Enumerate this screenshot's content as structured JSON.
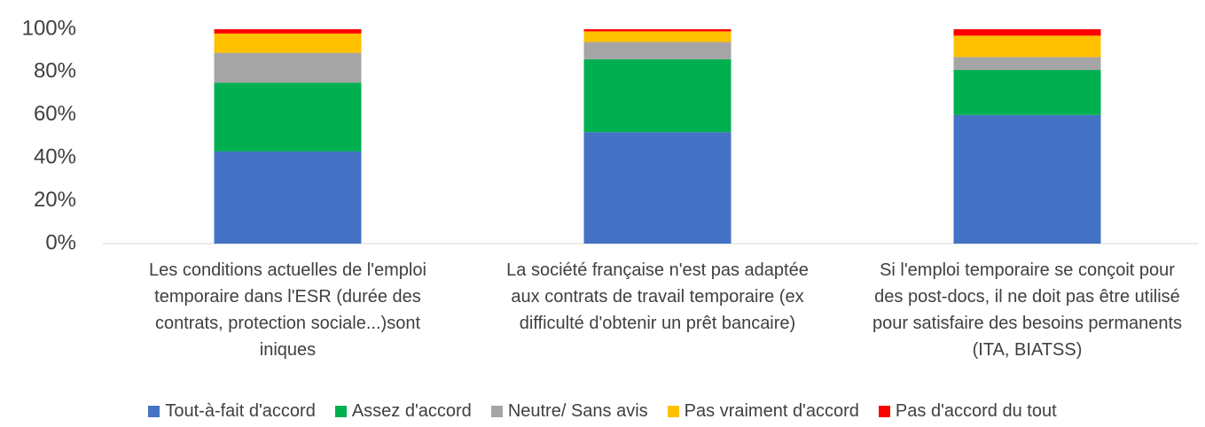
{
  "chart_data": {
    "type": "stacked_bar",
    "categories": [
      "Les conditions actuelles de l'emploi temporaire dans l'ESR (durée des contrats, protection sociale...)sont iniques",
      "La société française n'est pas adaptée aux contrats de travail temporaire (ex difficulté d'obtenir un prêt bancaire)",
      "Si l'emploi temporaire se conçoit pour des post-docs, il ne doit pas être utilisé pour satisfaire des besoins permanents (ITA, BIATSS)"
    ],
    "series": [
      {
        "name": "Tout-à-fait d'accord",
        "color": "#4472c4",
        "values": [
          43,
          52,
          60
        ]
      },
      {
        "name": "Assez d'accord",
        "color": "#00b050",
        "values": [
          32,
          34,
          21
        ]
      },
      {
        "name": "Neutre/ Sans avis",
        "color": "#a5a5a5",
        "values": [
          14,
          8,
          6
        ]
      },
      {
        "name": "Pas vraiment d'accord",
        "color": "#ffc000",
        "values": [
          9,
          5,
          10
        ]
      },
      {
        "name": "Pas d'accord du tout",
        "color": "#ff0000",
        "values": [
          2,
          1,
          3
        ]
      }
    ],
    "ylim": [
      0,
      100
    ],
    "yticks": [
      {
        "value": 0,
        "label": "0%"
      },
      {
        "value": 20,
        "label": "20%"
      },
      {
        "value": 40,
        "label": "40%"
      },
      {
        "value": 60,
        "label": "60%"
      },
      {
        "value": 80,
        "label": "80%"
      },
      {
        "value": 100,
        "label": "100%"
      }
    ]
  }
}
